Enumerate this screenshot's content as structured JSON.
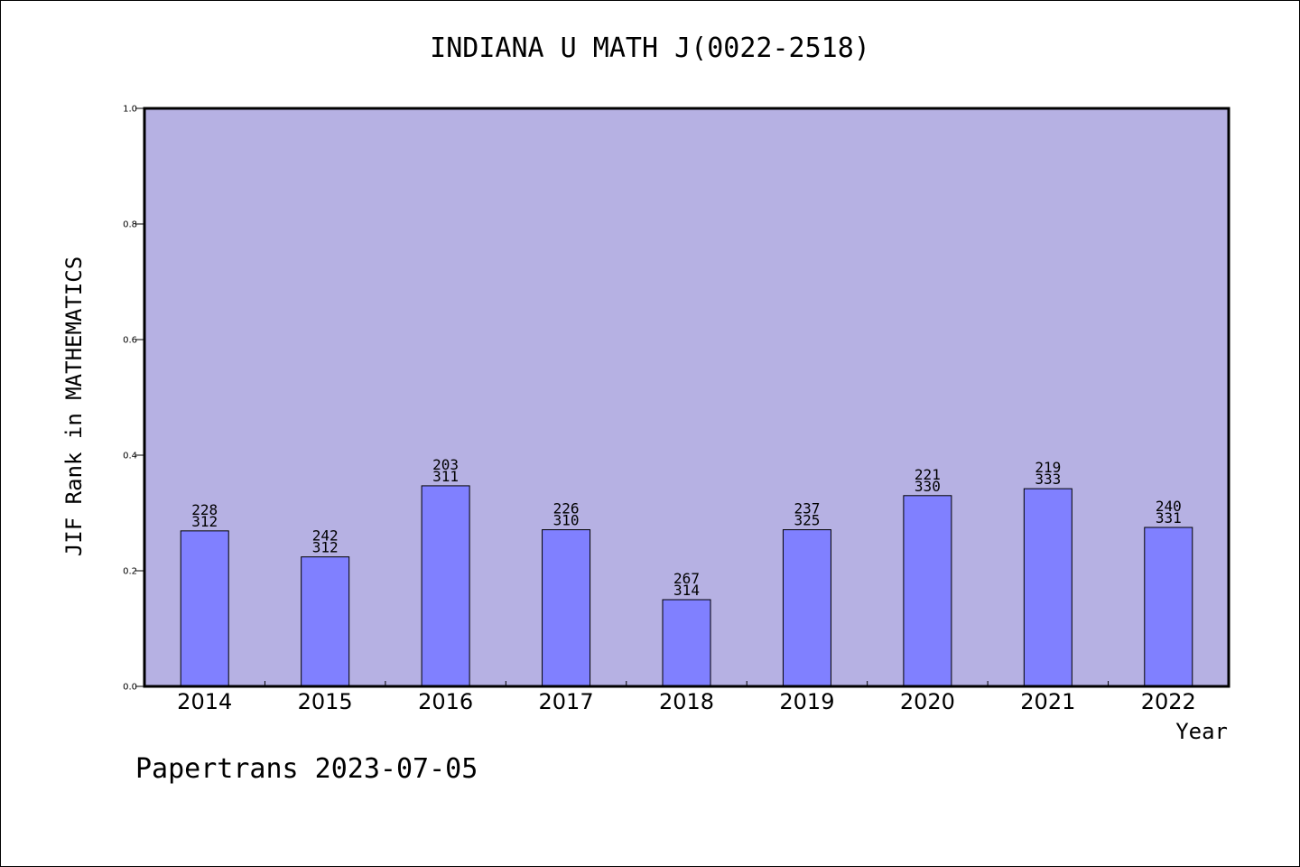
{
  "header": {
    "title": "INDIANA U MATH J(0022-2518)"
  },
  "footer": {
    "text": "Papertrans 2023-07-05"
  },
  "colors": {
    "plot_background": "#b6b1e3",
    "bar_fill": "#8080ff",
    "bar_stroke": "#000000"
  },
  "chart_data": {
    "type": "bar",
    "title": "INDIANA U MATH J(0022-2518)",
    "xlabel": "Year",
    "ylabel": "JIF Rank in MATHEMATICS",
    "ylim": [
      0,
      1.0
    ],
    "yticks": [
      "0.0",
      "0.2",
      "0.4",
      "0.6",
      "0.8",
      "1.0"
    ],
    "grid": false,
    "categories": [
      "2014",
      "2015",
      "2016",
      "2017",
      "2018",
      "2019",
      "2020",
      "2021",
      "2022"
    ],
    "values": [
      0.269,
      0.224,
      0.347,
      0.271,
      0.15,
      0.271,
      0.33,
      0.342,
      0.275
    ],
    "labels_top": [
      "228",
      "242",
      "203",
      "226",
      "267",
      "237",
      "221",
      "219",
      "240"
    ],
    "labels_bottom": [
      "312",
      "312",
      "311",
      "310",
      "314",
      "325",
      "330",
      "333",
      "331"
    ]
  }
}
